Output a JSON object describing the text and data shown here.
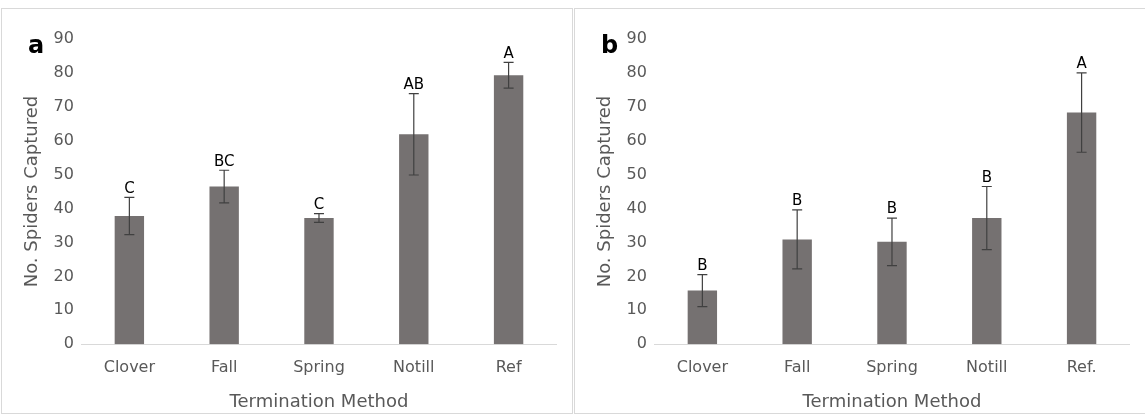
{
  "chart_data": [
    {
      "type": "bar",
      "title": "a",
      "xlabel": "Termination Method",
      "ylabel": "No. Spiders Captured",
      "categories": [
        "Clover",
        "Fall",
        "Spring",
        "Notill",
        "Ref"
      ],
      "series": [
        {
          "color": "#757171",
          "values": [
            37.8,
            46.5,
            37.2,
            61.9,
            79.3
          ],
          "errors": [
            5.5,
            4.8,
            1.3,
            12,
            3.8
          ]
        }
      ],
      "ylim": [
        0,
        90
      ],
      "yticks": [
        0,
        10,
        20,
        30,
        40,
        50,
        60,
        70,
        80,
        90
      ],
      "grid": false,
      "legend": false,
      "annotations": [
        {
          "text": "C",
          "x": "Clover",
          "y": 43.3
        },
        {
          "text": "BC",
          "x": "Fall",
          "y": 51.3
        },
        {
          "text": "C",
          "x": "Spring",
          "y": 38.5
        },
        {
          "text": "AB",
          "x": "Notill",
          "y": 73.9
        },
        {
          "text": "A",
          "x": "Ref",
          "y": 83.1
        }
      ]
    },
    {
      "type": "bar",
      "title": "b",
      "xlabel": "Termination Method",
      "ylabel": "No. Spiders Captured",
      "categories": [
        "Clover",
        "Fall",
        "Spring",
        "Notill",
        "Ref."
      ],
      "series": [
        {
          "color": "#757171",
          "values": [
            15.8,
            30.9,
            30.2,
            37.2,
            68.3
          ],
          "errors": [
            4.7,
            8.7,
            7,
            9.3,
            11.7
          ]
        }
      ],
      "ylim": [
        0,
        90
      ],
      "yticks": [
        0,
        10,
        20,
        30,
        40,
        50,
        60,
        70,
        80,
        90
      ],
      "grid": false,
      "legend": false,
      "annotations": [
        {
          "text": "B",
          "x": "Clover",
          "y": 20.5
        },
        {
          "text": "B",
          "x": "Fall",
          "y": 39.6
        },
        {
          "text": "B",
          "x": "Spring",
          "y": 37.2
        },
        {
          "text": "B",
          "x": "Notill",
          "y": 46.5
        },
        {
          "text": "A",
          "x": "Ref.",
          "y": 80
        }
      ]
    }
  ]
}
